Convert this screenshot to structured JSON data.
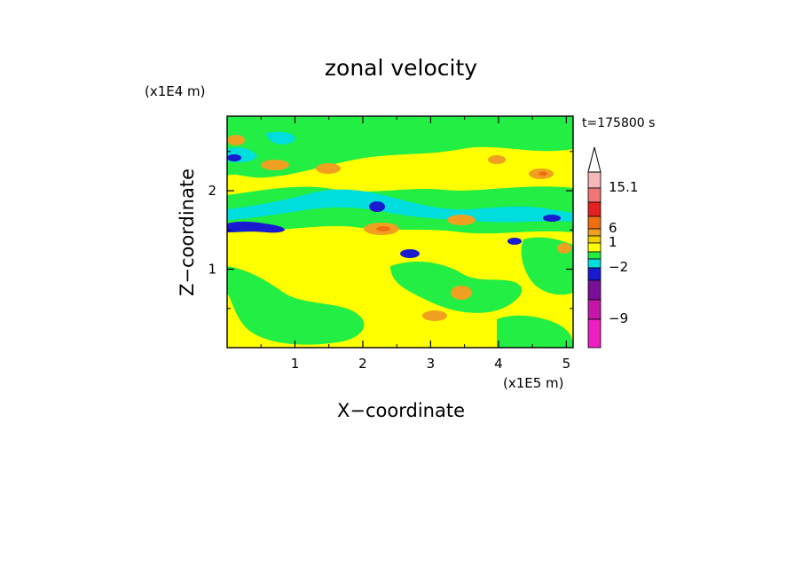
{
  "chart_data": {
    "type": "heatmap",
    "title": "zonal velocity",
    "xlabel": "X−coordinate",
    "ylabel": "Z−coordinate",
    "x_unit": "(x1E5 m)",
    "y_unit": "(x1E4 m)",
    "time_label": "t=175800 s",
    "xlim": [
      0.0,
      5.1
    ],
    "ylim": [
      0.0,
      2.95
    ],
    "x_ticks": [
      1,
      2,
      3,
      4,
      5
    ],
    "y_ticks": [
      1,
      2
    ],
    "x_tick_labels": [
      "1",
      "2",
      "3",
      "4",
      "5"
    ],
    "y_tick_labels": [
      "1",
      "2"
    ],
    "colorbar": {
      "labels": [
        "15.1",
        "6",
        "1",
        "−2",
        "−9"
      ],
      "label_levels": [
        15.1,
        6,
        1,
        -2,
        -9
      ],
      "colors_top_to_bottom": [
        "#f4b8b8",
        "#ee7676",
        "#e62020",
        "#ef6e10",
        "#f0a020",
        "#f4d000",
        "#ffff00",
        "#22ee44",
        "#00dddd",
        "#1a1ad0",
        "#7a0f9a",
        "#c416a8",
        "#ee1fc0"
      ]
    },
    "field_summary": {
      "background": "yellow (≈ 0 to 1 m/s)",
      "features": [
        "green negative bands across upper half and left lower region",
        "cyan band near z≈1.9–2.2 from x≈1.0 to 3.3",
        "dark blue negative streak near z≈1.55, x≈0.0–0.7",
        "dark blue blobs near x≈2.3, z≈1.8 and x≈2.6, z≈1.2",
        "orange/red positive patches scattered in mid and upper levels"
      ]
    }
  }
}
